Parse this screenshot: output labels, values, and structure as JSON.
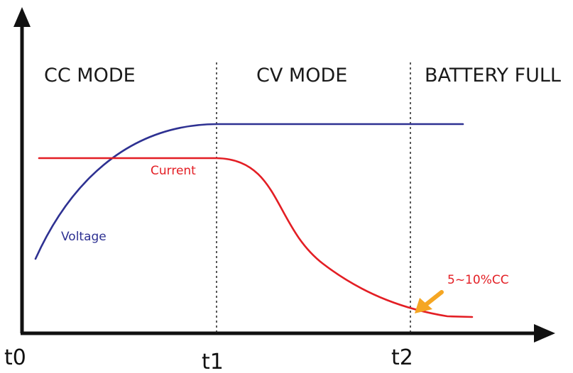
{
  "modes": {
    "cc": "CC MODE",
    "cv": "CV MODE",
    "full": "BATTERY FULL"
  },
  "curves": {
    "voltage": {
      "label": "Voltage",
      "color": "#2e3192"
    },
    "current": {
      "label": "Current",
      "color": "#e31e24"
    }
  },
  "annotation": {
    "text": "5~10%CC",
    "text_color": "#e31e24",
    "arrow_color": "#f5a623"
  },
  "ticks": {
    "t0": "t0",
    "t1": "t1",
    "t2": "t2"
  }
}
